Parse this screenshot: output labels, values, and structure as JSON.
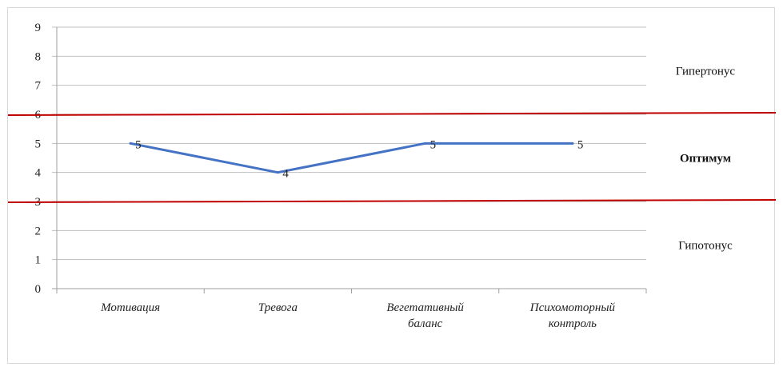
{
  "chart_data": {
    "type": "line",
    "categories": [
      [
        "Мотивация"
      ],
      [
        "Тревога"
      ],
      [
        "Вегетативный",
        "баланс"
      ],
      [
        "Психомоторный",
        "контроль"
      ]
    ],
    "values": [
      5,
      4,
      5,
      5
    ],
    "data_labels": [
      "5",
      "4",
      "5",
      "5"
    ],
    "ylim": [
      0,
      9
    ],
    "yticks": [
      0,
      1,
      2,
      3,
      4,
      5,
      6,
      7,
      8,
      9
    ],
    "grid": true,
    "reference_lines": [
      6,
      3
    ],
    "zones": [
      {
        "label": "Гипертонус",
        "bold": false
      },
      {
        "label": "Оптимум",
        "bold": true
      },
      {
        "label": "Гипотонус",
        "bold": false
      }
    ],
    "colors": {
      "series": "#4472c4",
      "reference": "#c00000",
      "grid": "#bfbfbf",
      "axis": "#9f9f9f"
    }
  }
}
